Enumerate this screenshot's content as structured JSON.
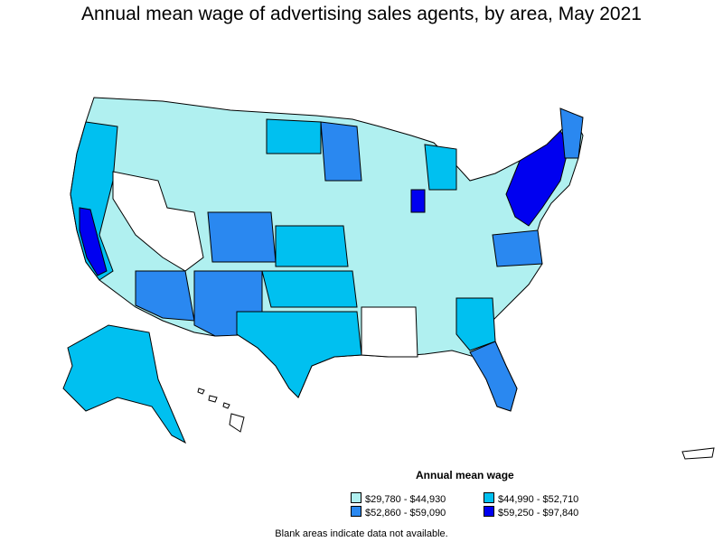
{
  "title": "Annual mean wage of advertising sales agents, by area, May 2021",
  "legend": {
    "title": "Annual mean wage",
    "items": [
      {
        "label": "$29,780 - $44,930",
        "color": "#b0f0f0"
      },
      {
        "label": "$44,990 - $52,710",
        "color": "#00c0f0"
      },
      {
        "label": "$52,860 - $59,090",
        "color": "#2a88f0"
      },
      {
        "label": "$59,250 - $97,840",
        "color": "#0000f0"
      }
    ]
  },
  "note": "Blank areas indicate data not available."
}
